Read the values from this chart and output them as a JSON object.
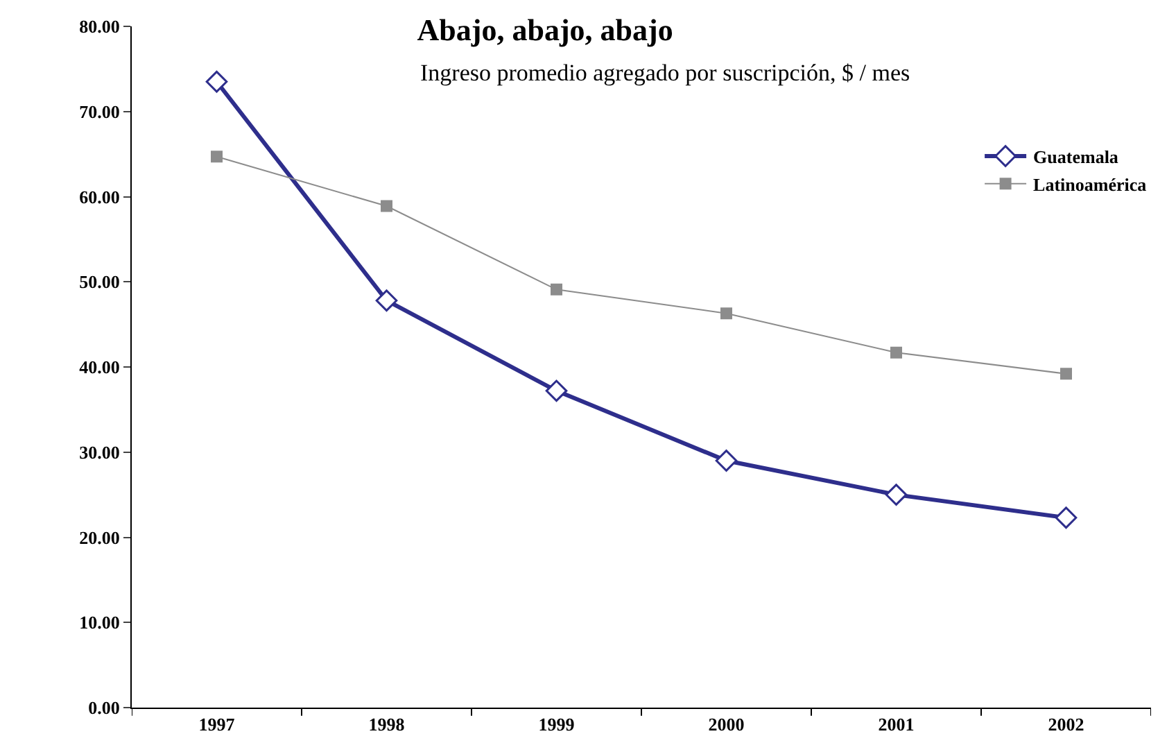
{
  "chart_data": {
    "type": "line",
    "title": "Abajo, abajo, abajo",
    "subtitle": "Ingreso promedio agregado por suscripción, $ / mes",
    "categories": [
      "1997",
      "1998",
      "1999",
      "2000",
      "2001",
      "2002"
    ],
    "series": [
      {
        "name": "Guatemala",
        "color": "#2e2e8c",
        "marker": "diamond",
        "values": [
          73.5,
          47.8,
          37.2,
          29.0,
          25.0,
          22.3
        ]
      },
      {
        "name": "Latinoamérica",
        "color": "#8c8c8c",
        "marker": "square",
        "values": [
          64.7,
          58.9,
          49.1,
          46.3,
          41.7,
          39.2
        ]
      }
    ],
    "ylim": [
      0,
      80
    ],
    "yticks": [
      {
        "value": 0,
        "label": "0.00"
      },
      {
        "value": 10,
        "label": "10.00"
      },
      {
        "value": 20,
        "label": "20.00"
      },
      {
        "value": 30,
        "label": "30.00"
      },
      {
        "value": 40,
        "label": "40.00"
      },
      {
        "value": 50,
        "label": "50.00"
      },
      {
        "value": 60,
        "label": "60.00"
      },
      {
        "value": 70,
        "label": "70.00"
      },
      {
        "value": 80,
        "label": "80.00"
      }
    ],
    "legend": "top right",
    "line_style": "solid"
  }
}
